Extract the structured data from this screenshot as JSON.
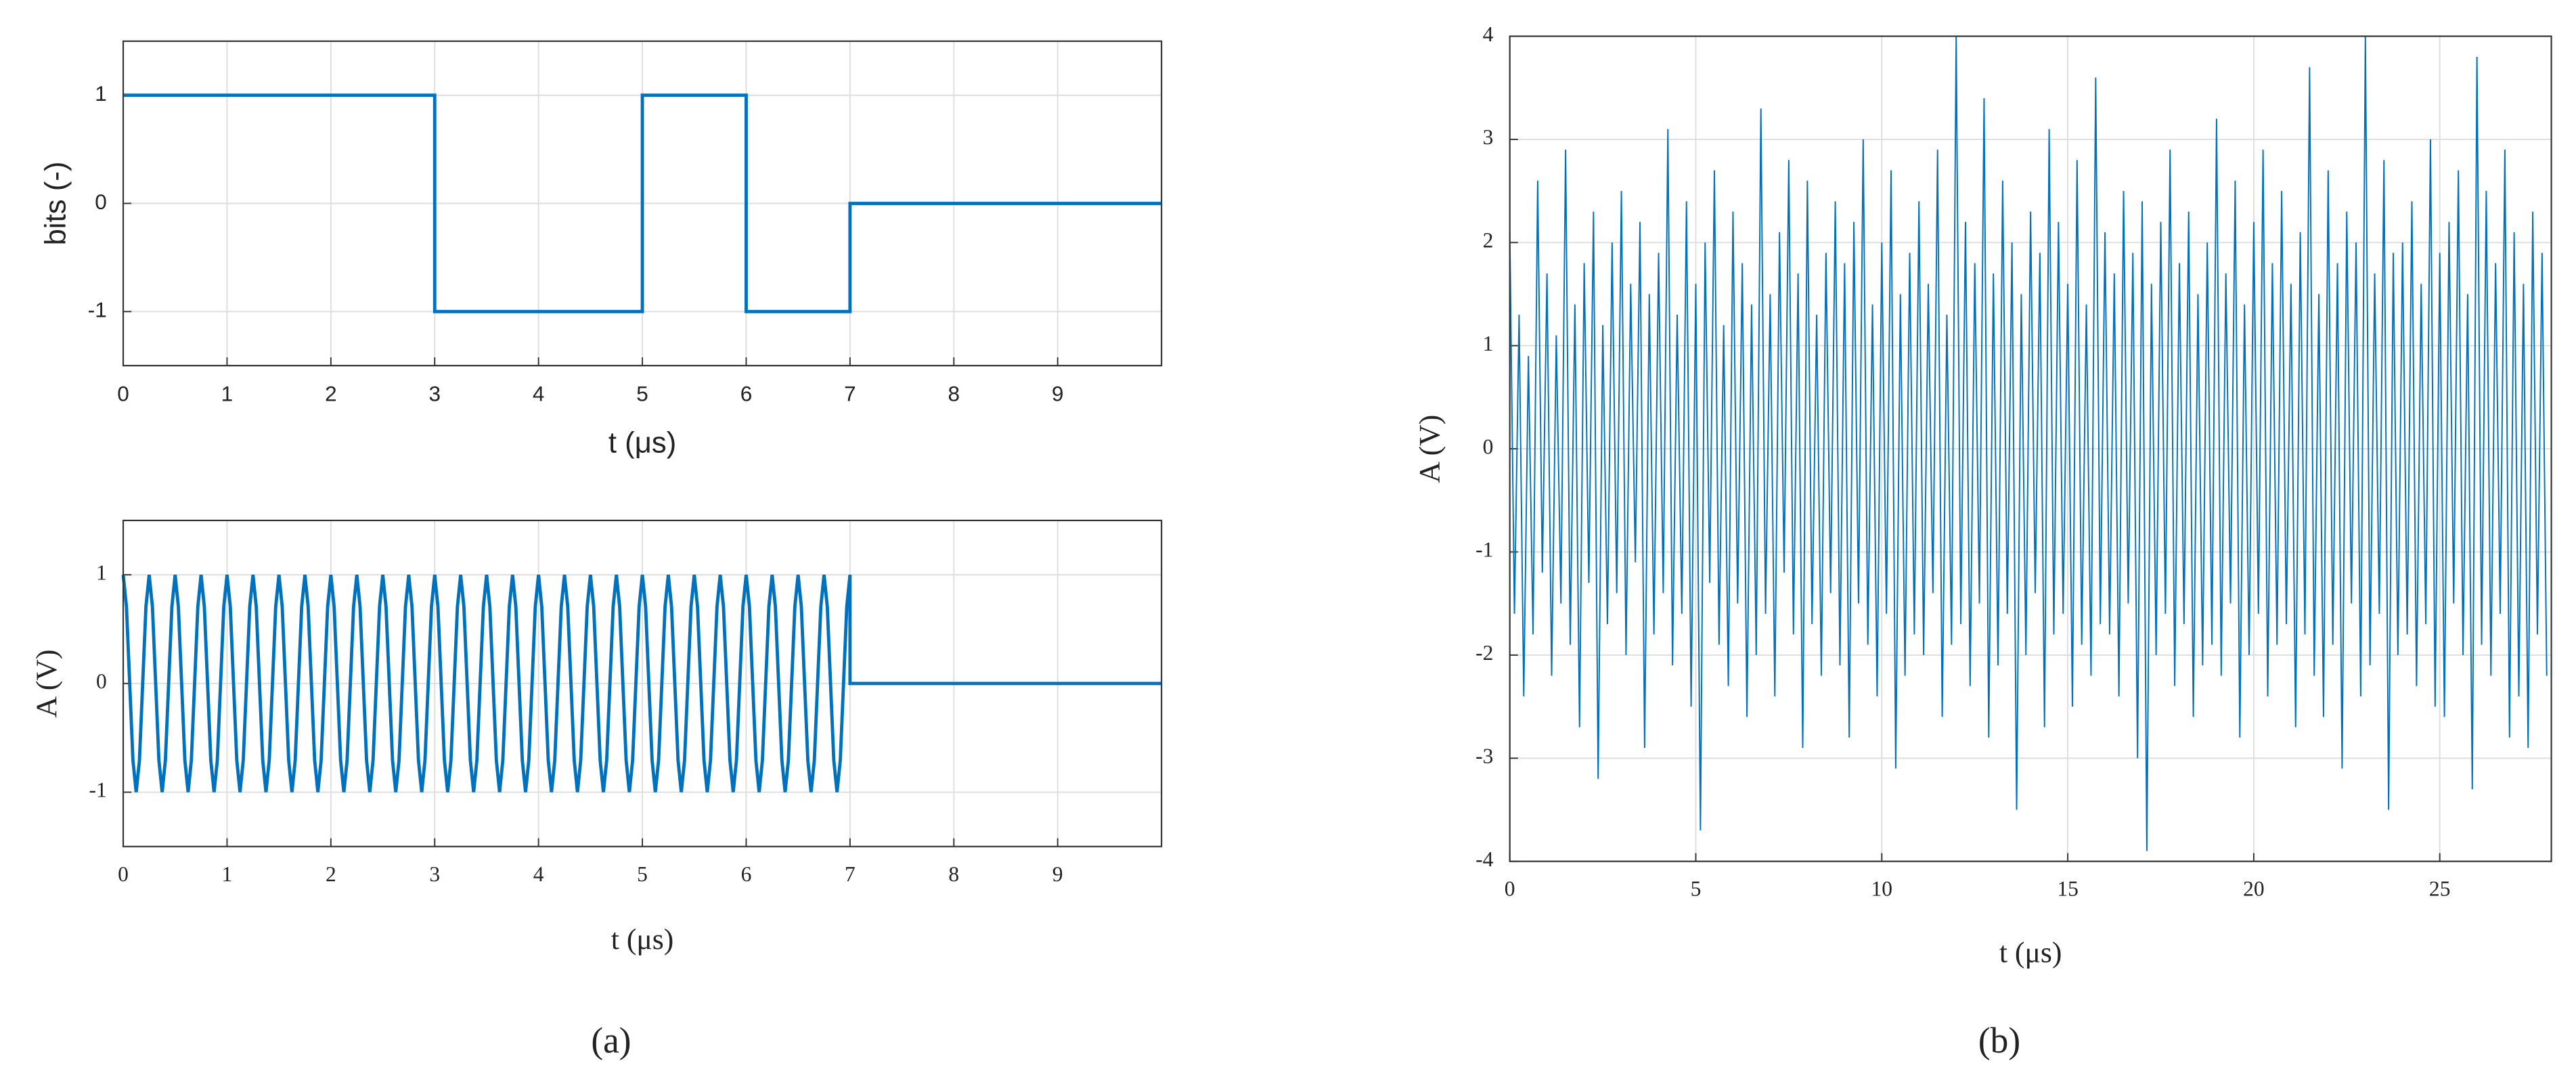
{
  "captions": [
    "(a)",
    "(b)"
  ],
  "chart_data": [
    {
      "type": "line",
      "xlabel": "t (μs)",
      "ylabel": "bits (-)",
      "color": "#0072BD",
      "grid": true,
      "xlim": [
        0,
        10
      ],
      "ylim": [
        -1.5,
        1.5
      ],
      "xticks": [
        0,
        1,
        2,
        3,
        4,
        5,
        6,
        7,
        8,
        9
      ],
      "yticks": [
        -1,
        0,
        1
      ],
      "x": [
        0,
        3,
        3,
        5,
        5,
        6,
        6,
        7,
        7,
        10
      ],
      "values": [
        1,
        1,
        -1,
        -1,
        1,
        1,
        -1,
        -1,
        0,
        0
      ]
    },
    {
      "type": "line",
      "xlabel": "t (μs)",
      "ylabel": "A (V)",
      "color": "#0072BD",
      "grid": true,
      "xlim": [
        0,
        10
      ],
      "ylim": [
        -1.5,
        1.5
      ],
      "xticks": [
        0,
        1,
        2,
        3,
        4,
        5,
        6,
        7,
        8,
        9
      ],
      "yticks": [
        -1,
        0,
        1
      ],
      "x": [
        0,
        0.03125,
        0.0625,
        0.09375,
        0.125,
        0.15625,
        0.1875,
        0.21875,
        0.25,
        0.28125,
        0.3125,
        0.34375,
        0.375,
        0.40625,
        0.4375,
        0.46875,
        0.5,
        0.53125,
        0.5625,
        0.59375,
        0.625,
        0.65625,
        0.6875,
        0.71875,
        0.75,
        0.78125,
        0.8125,
        0.84375,
        0.875,
        0.90625,
        0.9375,
        0.96875,
        1,
        1.03125,
        1.0625,
        1.09375,
        1.125,
        1.15625,
        1.1875,
        1.21875,
        1.25,
        1.28125,
        1.3125,
        1.34375,
        1.375,
        1.40625,
        1.4375,
        1.46875,
        1.5,
        1.53125,
        1.5625,
        1.59375,
        1.625,
        1.65625,
        1.6875,
        1.71875,
        1.75,
        1.78125,
        1.8125,
        1.84375,
        1.875,
        1.90625,
        1.9375,
        1.96875,
        2,
        2.03125,
        2.0625,
        2.09375,
        2.125,
        2.15625,
        2.1875,
        2.21875,
        2.25,
        2.28125,
        2.3125,
        2.34375,
        2.375,
        2.40625,
        2.4375,
        2.46875,
        2.5,
        2.53125,
        2.5625,
        2.59375,
        2.625,
        2.65625,
        2.6875,
        2.71875,
        2.75,
        2.78125,
        2.8125,
        2.84375,
        2.875,
        2.90625,
        2.9375,
        2.96875,
        3,
        3.03125,
        3.0625,
        3.09375,
        3.125,
        3.15625,
        3.1875,
        3.21875,
        3.25,
        3.28125,
        3.3125,
        3.34375,
        3.375,
        3.40625,
        3.4375,
        3.46875,
        3.5,
        3.53125,
        3.5625,
        3.59375,
        3.625,
        3.65625,
        3.6875,
        3.71875,
        3.75,
        3.78125,
        3.8125,
        3.84375,
        3.875,
        3.90625,
        3.9375,
        3.96875,
        4,
        4.03125,
        4.0625,
        4.09375,
        4.125,
        4.15625,
        4.1875,
        4.21875,
        4.25,
        4.28125,
        4.3125,
        4.34375,
        4.375,
        4.40625,
        4.4375,
        4.46875,
        4.5,
        4.53125,
        4.5625,
        4.59375,
        4.625,
        4.65625,
        4.6875,
        4.71875,
        4.75,
        4.78125,
        4.8125,
        4.84375,
        4.875,
        4.90625,
        4.9375,
        4.96875,
        5,
        5.03125,
        5.0625,
        5.09375,
        5.125,
        5.15625,
        5.1875,
        5.21875,
        5.25,
        5.28125,
        5.3125,
        5.34375,
        5.375,
        5.40625,
        5.4375,
        5.46875,
        5.5,
        5.53125,
        5.5625,
        5.59375,
        5.625,
        5.65625,
        5.6875,
        5.71875,
        5.75,
        5.78125,
        5.8125,
        5.84375,
        5.875,
        5.90625,
        5.9375,
        5.96875,
        6,
        6.03125,
        6.0625,
        6.09375,
        6.125,
        6.15625,
        6.1875,
        6.21875,
        6.25,
        6.28125,
        6.3125,
        6.34375,
        6.375,
        6.40625,
        6.4375,
        6.46875,
        6.5,
        6.53125,
        6.5625,
        6.59375,
        6.625,
        6.65625,
        6.6875,
        6.71875,
        6.75,
        6.78125,
        6.8125,
        6.84375,
        6.875,
        6.90625,
        6.9375,
        6.96875,
        7,
        7,
        10
      ],
      "values": [
        1,
        0.707,
        0,
        -0.707,
        -1,
        -0.707,
        0,
        0.707,
        1,
        0.707,
        0,
        -0.707,
        -1,
        -0.707,
        0,
        0.707,
        1,
        0.707,
        0,
        -0.707,
        -1,
        -0.707,
        0,
        0.707,
        1,
        0.707,
        0,
        -0.707,
        -1,
        -0.707,
        0,
        0.707,
        1,
        0.707,
        0,
        -0.707,
        -1,
        -0.707,
        0,
        0.707,
        1,
        0.707,
        0,
        -0.707,
        -1,
        -0.707,
        0,
        0.707,
        1,
        0.707,
        0,
        -0.707,
        -1,
        -0.707,
        0,
        0.707,
        1,
        0.707,
        0,
        -0.707,
        -1,
        -0.707,
        0,
        0.707,
        1,
        0.707,
        0,
        -0.707,
        -1,
        -0.707,
        0,
        0.707,
        1,
        0.707,
        0,
        -0.707,
        -1,
        -0.707,
        0,
        0.707,
        1,
        0.707,
        0,
        -0.707,
        -1,
        -0.707,
        0,
        0.707,
        1,
        0.707,
        0,
        -0.707,
        -1,
        -0.707,
        0,
        0.707,
        1,
        0.707,
        0,
        -0.707,
        -1,
        -0.707,
        0,
        0.707,
        1,
        0.707,
        0,
        -0.707,
        -1,
        -0.707,
        0,
        0.707,
        1,
        0.707,
        0,
        -0.707,
        -1,
        -0.707,
        0,
        0.707,
        1,
        0.707,
        0,
        -0.707,
        -1,
        -0.707,
        0,
        0.707,
        1,
        0.707,
        0,
        -0.707,
        -1,
        -0.707,
        0,
        0.707,
        1,
        0.707,
        0,
        -0.707,
        -1,
        -0.707,
        0,
        0.707,
        1,
        0.707,
        0,
        -0.707,
        -1,
        -0.707,
        0,
        0.707,
        1,
        0.707,
        0,
        -0.707,
        -1,
        -0.707,
        0,
        0.707,
        1,
        0.707,
        0,
        -0.707,
        -1,
        -0.707,
        0,
        0.707,
        1,
        0.707,
        0,
        -0.707,
        -1,
        -0.707,
        0,
        0.707,
        1,
        0.707,
        0,
        -0.707,
        -1,
        -0.707,
        0,
        0.707,
        1,
        0.707,
        0,
        -0.707,
        -1,
        -0.707,
        0,
        0.707,
        1,
        0.707,
        0,
        -0.707,
        -1,
        -0.707,
        0,
        0.707,
        1,
        0.707,
        0,
        -0.707,
        -1,
        -0.707,
        0,
        0.707,
        1,
        0.707,
        0,
        -0.707,
        -1,
        -0.707,
        0,
        0.707,
        1,
        0.707,
        0,
        -0.707,
        -1,
        -0.707,
        0,
        0.707,
        1,
        0,
        0
      ]
    },
    {
      "type": "line",
      "xlabel": "t (μs)",
      "ylabel": "A (V)",
      "color": "#0072BD",
      "grid": true,
      "xlim": [
        0,
        28
      ],
      "ylim": [
        -4,
        4
      ],
      "xticks": [
        0,
        5,
        10,
        15,
        20,
        25
      ],
      "yticks": [
        -4,
        -3,
        -2,
        -1,
        0,
        1,
        2,
        3,
        4
      ],
      "x": [
        0,
        0.125,
        0.25,
        0.375,
        0.5,
        0.625,
        0.75,
        0.875,
        1,
        1.125,
        1.25,
        1.375,
        1.5,
        1.625,
        1.75,
        1.875,
        2,
        2.125,
        2.25,
        2.375,
        2.5,
        2.625,
        2.75,
        2.875,
        3,
        3.125,
        3.25,
        3.375,
        3.5,
        3.625,
        3.75,
        3.875,
        4,
        4.125,
        4.25,
        4.375,
        4.5,
        4.625,
        4.75,
        4.875,
        5,
        5.125,
        5.25,
        5.375,
        5.5,
        5.625,
        5.75,
        5.875,
        6,
        6.125,
        6.25,
        6.375,
        6.5,
        6.625,
        6.75,
        6.875,
        7,
        7.125,
        7.25,
        7.375,
        7.5,
        7.625,
        7.75,
        7.875,
        8,
        8.125,
        8.25,
        8.375,
        8.5,
        8.625,
        8.75,
        8.875,
        9,
        9.125,
        9.25,
        9.375,
        9.5,
        9.625,
        9.75,
        9.875,
        10,
        10.125,
        10.25,
        10.375,
        10.5,
        10.625,
        10.75,
        10.875,
        11,
        11.125,
        11.25,
        11.375,
        11.5,
        11.625,
        11.75,
        11.875,
        12,
        12.125,
        12.25,
        12.375,
        12.5,
        12.625,
        12.75,
        12.875,
        13,
        13.125,
        13.25,
        13.375,
        13.5,
        13.625,
        13.75,
        13.875,
        14,
        14.125,
        14.25,
        14.375,
        14.5,
        14.625,
        14.75,
        14.875,
        15,
        15.125,
        15.25,
        15.375,
        15.5,
        15.625,
        15.75,
        15.875,
        16,
        16.125,
        16.25,
        16.375,
        16.5,
        16.625,
        16.75,
        16.875,
        17,
        17.125,
        17.25,
        17.375,
        17.5,
        17.625,
        17.75,
        17.875,
        18,
        18.125,
        18.25,
        18.375,
        18.5,
        18.625,
        18.75,
        18.875,
        19,
        19.125,
        19.25,
        19.375,
        19.5,
        19.625,
        19.75,
        19.875,
        20,
        20.125,
        20.25,
        20.375,
        20.5,
        20.625,
        20.75,
        20.875,
        21,
        21.125,
        21.25,
        21.375,
        21.5,
        21.625,
        21.75,
        21.875,
        22,
        22.125,
        22.25,
        22.375,
        22.5,
        22.625,
        22.75,
        22.875,
        23,
        23.125,
        23.25,
        23.375,
        23.5,
        23.625,
        23.75,
        23.875,
        24,
        24.125,
        24.25,
        24.375,
        24.5,
        24.625,
        24.75,
        24.875,
        25,
        25.125,
        25.25,
        25.375,
        25.5,
        25.625,
        25.75,
        25.875,
        26,
        26.125,
        26.25,
        26.375,
        26.5,
        26.625,
        26.75,
        26.875,
        27,
        27.125,
        27.25,
        27.375,
        27.5,
        27.625,
        27.75,
        27.875
      ],
      "values": [
        2.1,
        -1.6,
        1.3,
        -2.4,
        0.9,
        -1.8,
        2.6,
        -1.2,
        1.7,
        -2.2,
        1.1,
        -1.5,
        2.9,
        -1.9,
        1.4,
        -2.7,
        1.8,
        -1.3,
        2.3,
        -3.2,
        1.2,
        -1.7,
        2.0,
        -1.4,
        2.5,
        -2.0,
        1.6,
        -1.1,
        2.2,
        -2.9,
        1.5,
        -1.8,
        1.9,
        -1.4,
        3.1,
        -2.1,
        1.3,
        -1.6,
        2.4,
        -2.5,
        1.6,
        -3.7,
        2.0,
        -1.3,
        2.7,
        -1.9,
        1.2,
        -2.3,
        2.3,
        -1.5,
        1.8,
        -2.6,
        1.4,
        -2.0,
        3.3,
        -1.6,
        1.5,
        -2.4,
        2.1,
        -1.2,
        2.8,
        -1.8,
        1.7,
        -2.9,
        2.6,
        -1.7,
        1.3,
        -2.2,
        1.9,
        -1.4,
        2.4,
        -2.1,
        1.8,
        -2.8,
        2.2,
        -1.5,
        3.0,
        -1.9,
        1.4,
        -2.4,
        2.0,
        -1.6,
        2.7,
        -3.1,
        1.5,
        -2.2,
        1.9,
        -1.8,
        2.4,
        -2.0,
        1.6,
        -1.4,
        2.9,
        -2.6,
        1.3,
        -1.9,
        4.0,
        -1.7,
        2.2,
        -2.3,
        1.8,
        -1.5,
        3.4,
        -2.8,
        1.7,
        -2.1,
        2.6,
        -1.6,
        2.0,
        -3.5,
        1.5,
        -2.0,
        2.3,
        -1.4,
        1.9,
        -2.7,
        3.1,
        -1.8,
        2.2,
        -1.6,
        1.6,
        -2.5,
        2.8,
        -1.9,
        1.4,
        -2.2,
        3.6,
        -1.7,
        2.1,
        -1.8,
        1.7,
        -2.4,
        2.5,
        -1.5,
        1.9,
        -3.0,
        2.4,
        -3.9,
        1.6,
        -2.0,
        2.2,
        -1.6,
        2.9,
        -2.3,
        1.8,
        -1.7,
        2.3,
        -2.6,
        1.5,
        -2.1,
        2.0,
        -1.9,
        3.2,
        -2.2,
        1.7,
        -1.5,
        2.6,
        -2.8,
        1.4,
        -2.0,
        2.2,
        -1.6,
        2.9,
        -2.4,
        1.8,
        -1.9,
        2.5,
        -1.7,
        1.6,
        -2.7,
        2.1,
        -1.8,
        3.7,
        -2.2,
        1.5,
        -2.6,
        2.7,
        -1.9,
        1.8,
        -3.1,
        2.3,
        -1.5,
        2.0,
        -2.4,
        4.0,
        -2.1,
        1.7,
        -1.6,
        2.8,
        -3.5,
        1.9,
        -2.0,
        2.0,
        -1.8,
        2.4,
        -2.3,
        1.6,
        -1.7,
        3.0,
        -2.5,
        1.9,
        -2.6,
        2.2,
        -1.5,
        2.7,
        -2.0,
        1.5,
        -3.3,
        3.8,
        -1.9,
        2.5,
        -2.2,
        1.8,
        -1.6,
        2.9,
        -2.8,
        2.1,
        -2.4,
        1.6,
        -2.9,
        2.3,
        -1.8,
        1.9,
        -2.2
      ]
    }
  ]
}
